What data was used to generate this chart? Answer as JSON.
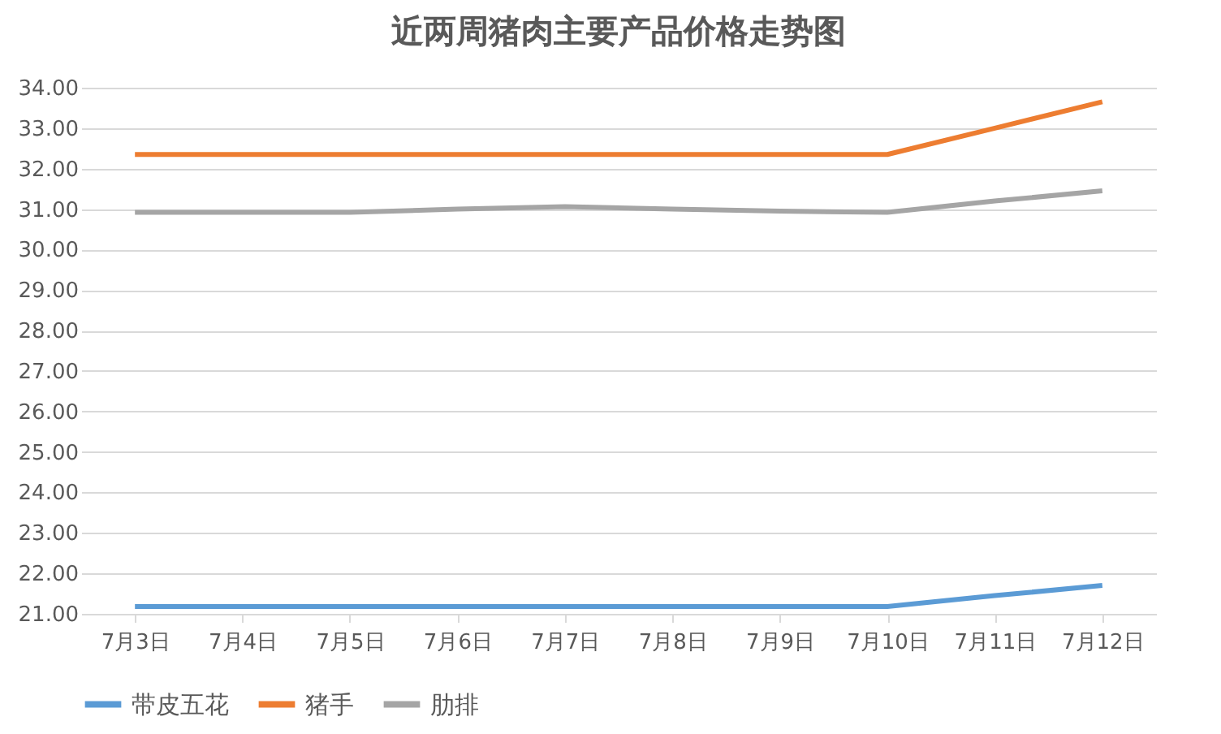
{
  "chart_data": {
    "type": "line",
    "title": "近两周猪肉主要产品价格走势图",
    "categories": [
      "7月3日",
      "7月4日",
      "7月5日",
      "7月6日",
      "7月7日",
      "7月8日",
      "7月9日",
      "7月10日",
      "7月11日",
      "7月12日"
    ],
    "series": [
      {
        "name": "带皮五花",
        "color": "#5b9bd5",
        "values": [
          21.18,
          21.18,
          21.18,
          21.18,
          21.18,
          21.18,
          21.18,
          21.18,
          21.45,
          21.7
        ]
      },
      {
        "name": "猪手",
        "color": "#ed7d31",
        "values": [
          32.35,
          32.35,
          32.35,
          32.35,
          32.35,
          32.35,
          32.35,
          32.35,
          33.0,
          33.65
        ]
      },
      {
        "name": "肋排",
        "color": "#a5a5a5",
        "values": [
          30.92,
          30.92,
          30.92,
          31.0,
          31.06,
          31.0,
          30.95,
          30.92,
          31.2,
          31.45
        ]
      }
    ],
    "ylim": [
      21,
      34
    ],
    "yticks": [
      {
        "value": 21,
        "label": "21.00"
      },
      {
        "value": 22,
        "label": "22.00"
      },
      {
        "value": 23,
        "label": "23.00"
      },
      {
        "value": 24,
        "label": "24.00"
      },
      {
        "value": 25,
        "label": "25.00"
      },
      {
        "value": 26,
        "label": "26.00"
      },
      {
        "value": 27,
        "label": "27.00"
      },
      {
        "value": 28,
        "label": "28.00"
      },
      {
        "value": 29,
        "label": "29.00"
      },
      {
        "value": 30,
        "label": "30.00"
      },
      {
        "value": 31,
        "label": "31.00"
      },
      {
        "value": 32,
        "label": "32.00"
      },
      {
        "value": 33,
        "label": "33.00"
      },
      {
        "value": 34,
        "label": "34.00"
      }
    ],
    "grid": "y",
    "legend": "bottom",
    "marker": "none",
    "line_style": "solid"
  }
}
